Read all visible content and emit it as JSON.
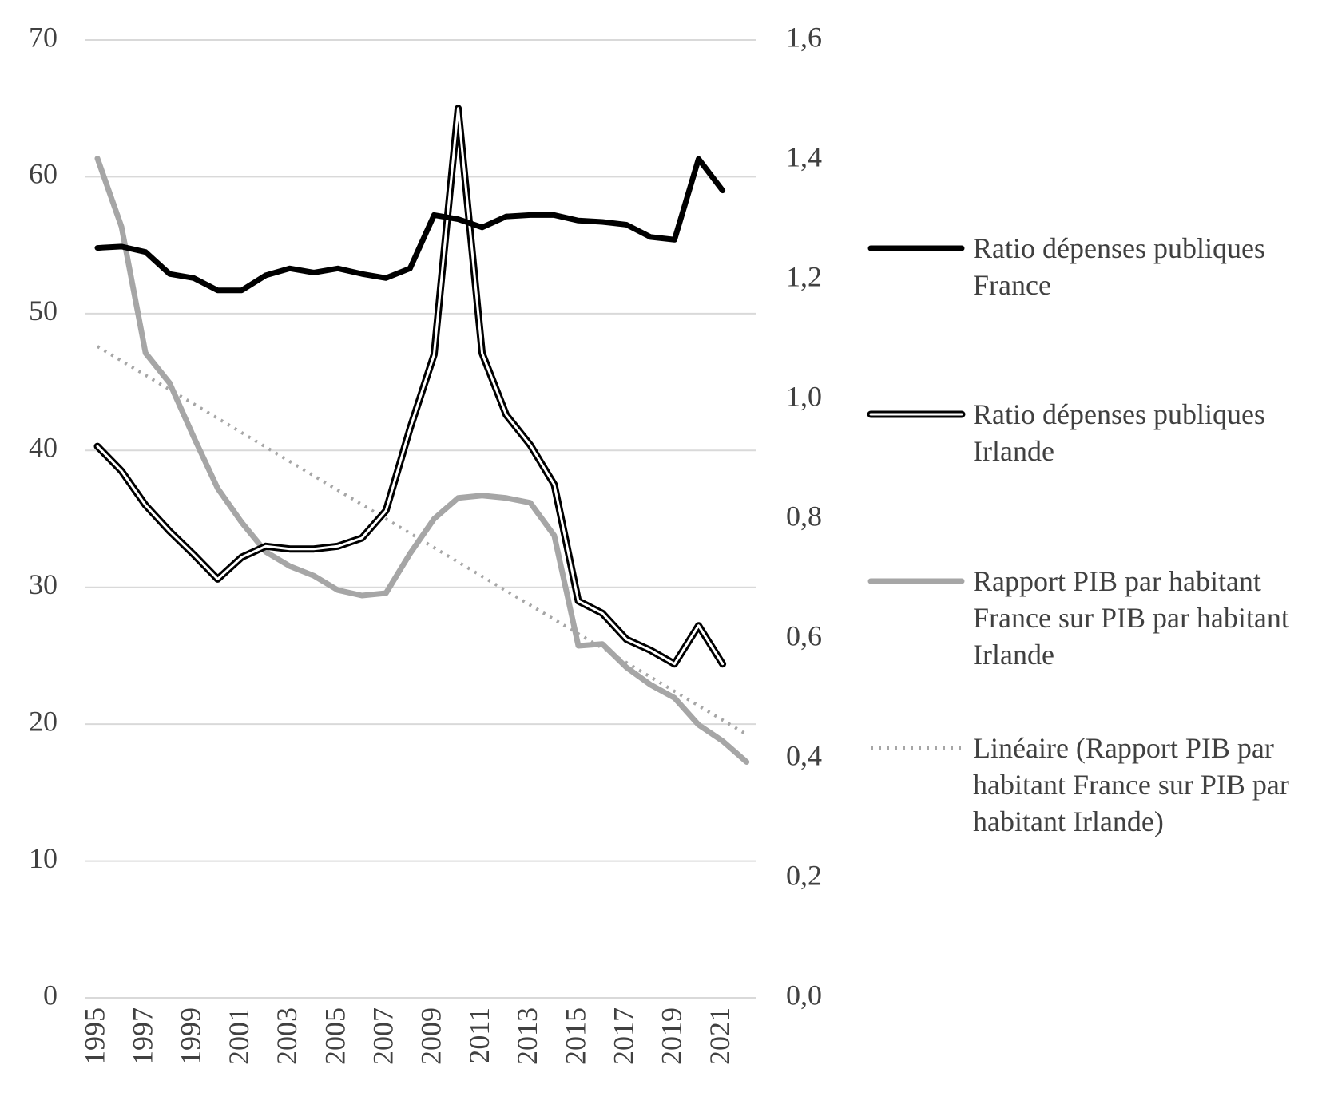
{
  "chart_data": {
    "type": "line",
    "categories": [
      "1995",
      null,
      "1997",
      null,
      "1999",
      null,
      "2001",
      null,
      "2003",
      null,
      "2005",
      null,
      "2007",
      null,
      "2009",
      null,
      "2011",
      null,
      "2013",
      null,
      "2015",
      null,
      "2017",
      null,
      "2019",
      null,
      "2021",
      null
    ],
    "ylim": [
      0,
      70
    ],
    "yticks": [
      0,
      10,
      20,
      30,
      40,
      50,
      60,
      70
    ],
    "y2lim": [
      0,
      1.6
    ],
    "y2ticks": [
      {
        "value": 0,
        "label": "0,0"
      },
      {
        "value": 0.2,
        "label": "0,2"
      },
      {
        "value": 0.4,
        "label": "0,4"
      },
      {
        "value": 0.6,
        "label": "0,6"
      },
      {
        "value": 0.8,
        "label": "0,8"
      },
      {
        "value": 1.0,
        "label": "1,0"
      },
      {
        "value": 1.2,
        "label": "1,2"
      },
      {
        "value": 1.4,
        "label": "1,4"
      },
      {
        "value": 1.6,
        "label": "1,6"
      }
    ],
    "grid": true,
    "legend": "right",
    "series": [
      {
        "name": "Ratio dépenses publiques France",
        "color": "#000000",
        "style": "solid",
        "values": [
          54.8,
          54.9,
          54.5,
          52.9,
          52.6,
          51.7,
          51.7,
          52.8,
          53.3,
          53.0,
          53.3,
          52.9,
          52.6,
          53.3,
          57.2,
          56.9,
          56.3,
          57.1,
          57.2,
          57.2,
          56.8,
          56.7,
          56.5,
          55.6,
          55.4,
          61.3,
          59.0,
          null
        ]
      },
      {
        "name": "Ratio dépenses publiques Irlande",
        "color": "#000000",
        "style": "double",
        "values": [
          40.3,
          38.5,
          36.0,
          34.1,
          32.4,
          30.6,
          32.2,
          33.0,
          32.8,
          32.8,
          33.0,
          33.6,
          35.6,
          41.6,
          47.0,
          65.0,
          47.1,
          42.6,
          40.4,
          37.5,
          29.0,
          28.1,
          26.2,
          25.4,
          24.4,
          27.2,
          24.4,
          null
        ]
      },
      {
        "name": "Rapport PIB par habitant France sur PIB par habitant Irlande",
        "color": "#a6a6a6",
        "style": "solid",
        "axis": "y2",
        "values": [
          1.402,
          1.288,
          1.077,
          1.027,
          0.937,
          0.851,
          0.794,
          0.745,
          0.721,
          0.705,
          0.681,
          0.672,
          0.676,
          0.742,
          0.8,
          0.835,
          0.839,
          0.835,
          0.827,
          0.772,
          0.588,
          0.591,
          0.552,
          0.523,
          0.501,
          0.456,
          0.429,
          0.394
        ]
      },
      {
        "name": "Linéaire (Rapport PIB par habitant France sur PIB par habitant Irlande)",
        "color": "#a6a6a6",
        "style": "dotted",
        "axis": "y2",
        "values": [
          1.088,
          1.064,
          1.04,
          1.016,
          0.992,
          0.968,
          0.944,
          0.92,
          0.896,
          0.872,
          0.848,
          0.824,
          0.8,
          0.776,
          0.752,
          0.728,
          0.704,
          0.68,
          0.656,
          0.632,
          0.608,
          0.584,
          0.56,
          0.536,
          0.512,
          0.488,
          0.464,
          0.44
        ]
      }
    ]
  }
}
